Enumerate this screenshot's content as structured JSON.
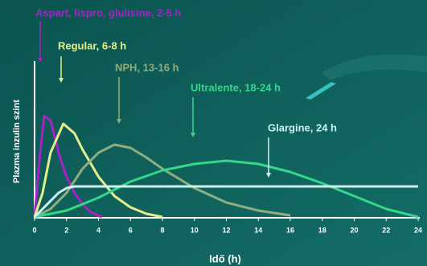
{
  "chart_data": {
    "type": "line",
    "x_label": "Idő (h)",
    "y_label": "Plazma inzulin szint",
    "xlim": [
      0,
      24
    ],
    "xticks": [
      0,
      2,
      4,
      6,
      8,
      10,
      12,
      14,
      16,
      18,
      20,
      22,
      24
    ],
    "ylim": [
      0,
      100
    ],
    "series": [
      {
        "name": "Aspart, lispro, glulisine, 2-5 h",
        "color": "#a424c8",
        "x": [
          0,
          0.3,
          0.6,
          1,
          1.5,
          2,
          2.5,
          3,
          3.5,
          4.2
        ],
        "values": [
          0,
          35,
          63,
          60,
          40,
          25,
          15,
          8,
          3,
          0
        ]
      },
      {
        "name": "Regular, 6-8 h",
        "color": "#e4f08a",
        "x": [
          0,
          0.5,
          1,
          1.8,
          2.5,
          3,
          4,
          5,
          6,
          7,
          8
        ],
        "values": [
          0,
          15,
          40,
          58,
          52,
          42,
          25,
          13,
          6,
          2,
          0
        ]
      },
      {
        "name": "NPH, 13-16 h",
        "color": "#8fae80",
        "x": [
          0,
          1,
          2,
          3,
          4,
          5,
          6,
          7,
          8,
          10,
          12,
          14,
          16
        ],
        "values": [
          0,
          5,
          15,
          30,
          40,
          45,
          43,
          37,
          30,
          18,
          9,
          4,
          1
        ]
      },
      {
        "name": "Ultralente, 18-24 h",
        "color": "#33d88a",
        "x": [
          0,
          2,
          4,
          6,
          8,
          10,
          12,
          14,
          16,
          18,
          20,
          22,
          24
        ],
        "values": [
          0,
          4,
          12,
          22,
          29,
          33,
          35,
          33,
          28,
          21,
          13,
          5,
          0
        ]
      },
      {
        "name": "Glargine, 24 h",
        "color": "#cdf2f2",
        "x": [
          0,
          0.5,
          1,
          1.5,
          2,
          2.5,
          24
        ],
        "values": [
          0,
          5,
          10,
          15,
          18,
          19,
          19
        ]
      }
    ]
  }
}
